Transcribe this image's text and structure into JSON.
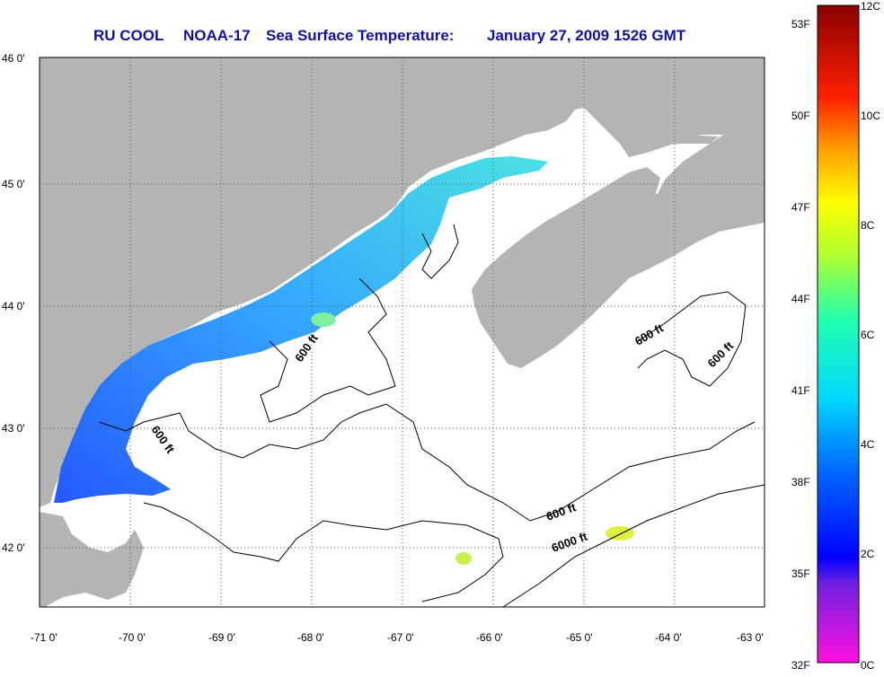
{
  "title": {
    "source": "RU COOL",
    "satellite": "NOAA-17",
    "product": "Sea Surface Temperature:",
    "date": "January 27, 2009 1526 GMT"
  },
  "axes": {
    "lat_labels": [
      "46 0'",
      "45 0'",
      "44 0'",
      "43 0'",
      "42 0'"
    ],
    "lon_labels": [
      "-71 0'",
      "-70 0'",
      "-69 0'",
      "-68 0'",
      "-67 0'",
      "-66 0'",
      "-65 0'",
      "-64 0'",
      "-63 0'"
    ]
  },
  "contours": {
    "labels": [
      "600 ft",
      "600 ft",
      "600 ft",
      "600 ft",
      "600 ft",
      "6000 ft"
    ]
  },
  "colorbar": {
    "fahrenheit_labels": [
      "53F",
      "50F",
      "47F",
      "44F",
      "41F",
      "38F",
      "35F",
      "32F"
    ],
    "celsius_labels": [
      "12C",
      "10C",
      "8C",
      "6C",
      "4C",
      "2C",
      "0C"
    ]
  },
  "colors": {
    "land": "#b4b4b4",
    "title": "#1010a8",
    "cold": "#1040ff",
    "mid": "#30c8ff",
    "warm": "#e0f040"
  }
}
